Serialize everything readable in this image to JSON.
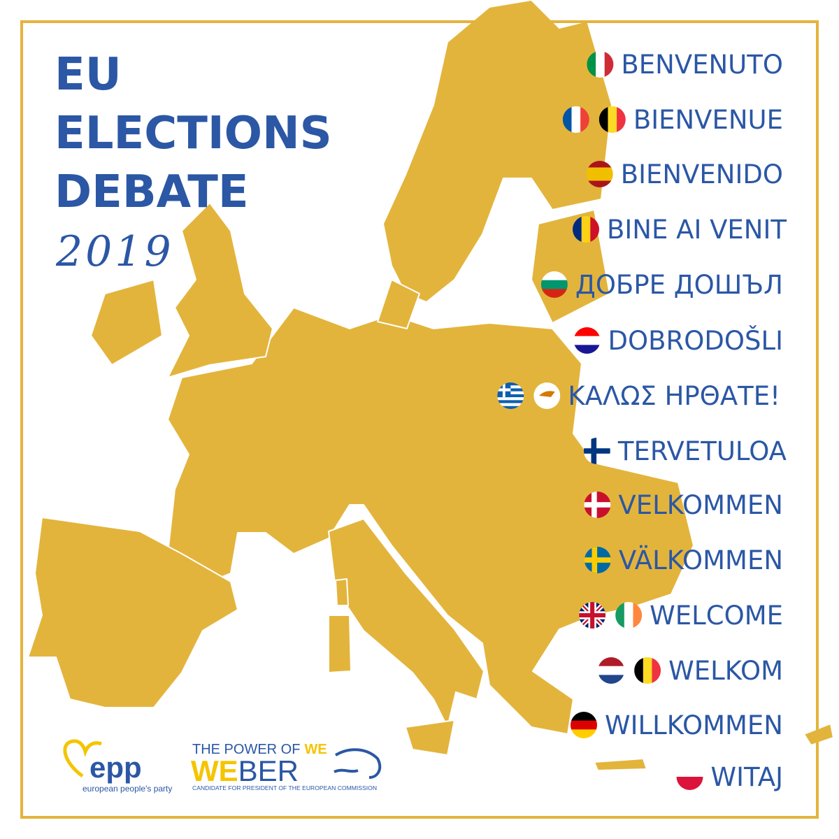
{
  "title": {
    "lines": [
      "EU",
      "ELECTIONS",
      "DEBATE"
    ],
    "year": "2019"
  },
  "greetings": [
    "BENVENUTO",
    "BIENVENUE",
    "BIENVENIDO",
    "BINE AI VENIT",
    "ДОБРЕ ДОШЪЛ",
    "DOBRODOŠLI",
    "ΚΑΛΩΣ ΗΡΘΑΤΕ!",
    "TERVETULOA",
    "VELKOMMEN",
    "VÄLKOMMEN",
    "WELCOME",
    "WELKOM",
    "WILLKOMMEN",
    "WITAJ"
  ],
  "logos": {
    "epp": {
      "name": "epp",
      "tagline": "european people's party"
    },
    "weber": {
      "slogan": "THE POWER OF",
      "slogan_highlight": "WE",
      "name_highlight": "WE",
      "name_rest": "BER",
      "caption": "CANDIDATE FOR PRESIDENT OF THE EUROPEAN COMMISSION"
    }
  }
}
